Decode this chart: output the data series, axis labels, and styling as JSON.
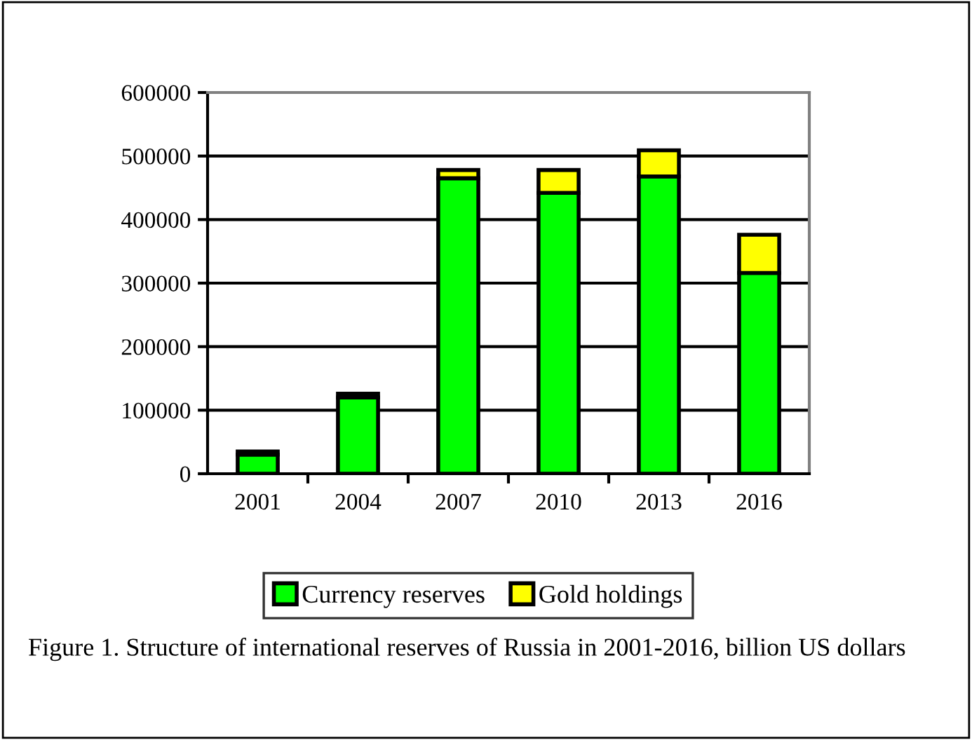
{
  "chart_data": {
    "type": "bar",
    "stacked": true,
    "categories": [
      "2001",
      "2004",
      "2007",
      "2010",
      "2013",
      "2016"
    ],
    "series": [
      {
        "name": "Currency reserves",
        "color": "#00ff00",
        "values": [
          30000,
          120000,
          465000,
          442000,
          468000,
          316000
        ]
      },
      {
        "name": "Gold holdings",
        "color": "#ffff00",
        "values": [
          5000,
          6000,
          13000,
          36000,
          41000,
          60000
        ]
      }
    ],
    "ylim": [
      0,
      600000
    ],
    "yticks": [
      0,
      100000,
      200000,
      300000,
      400000,
      500000,
      600000
    ],
    "grid": "y",
    "legend": "bottom",
    "annotations": [
      "Figure 1. Structure of international reserves of Russia in 2001-2016, billion US dollars"
    ]
  }
}
